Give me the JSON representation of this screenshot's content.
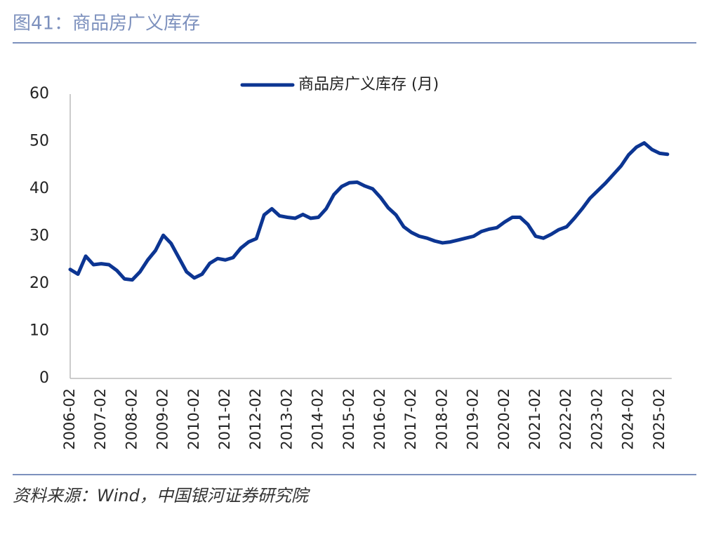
{
  "chart_data": {
    "type": "line",
    "title": "图41：商品房广义库存",
    "source": "资料来源：Wind，中国银河证券研究院",
    "categories": [
      "2006-02",
      null,
      null,
      null,
      "2007-02",
      null,
      null,
      null,
      "2008-02",
      null,
      null,
      null,
      "2009-02",
      null,
      null,
      null,
      "2010-02",
      null,
      null,
      null,
      "2011-02",
      null,
      null,
      null,
      "2012-02",
      null,
      null,
      null,
      "2013-02",
      null,
      null,
      null,
      "2014-02",
      null,
      null,
      null,
      "2015-02",
      null,
      null,
      null,
      "2016-02",
      null,
      null,
      null,
      "2017-02",
      null,
      null,
      null,
      "2018-02",
      null,
      null,
      null,
      "2019-02",
      null,
      null,
      null,
      "2020-02",
      null,
      null,
      null,
      "2021-02",
      null,
      null,
      null,
      "2022-02",
      null,
      null,
      null,
      "2023-02",
      null,
      null,
      null,
      "2024-02",
      null,
      null,
      null,
      "2025-02",
      null
    ],
    "series": [
      {
        "name": "商品房广义库存 (月)",
        "color": "#0c3592",
        "values": [
          23,
          22,
          25.8,
          24,
          24.2,
          24,
          22.8,
          21,
          20.8,
          22.5,
          25,
          27,
          30.2,
          28.5,
          25.5,
          22.5,
          21.2,
          22,
          24.3,
          25.3,
          25,
          25.5,
          27.5,
          28.8,
          29.5,
          34.5,
          35.8,
          34.3,
          34,
          33.8,
          34.6,
          33.8,
          34,
          35.8,
          38.8,
          40.5,
          41.3,
          41.4,
          40.6,
          40,
          38.2,
          36,
          34.5,
          32,
          30.8,
          30,
          29.6,
          29,
          28.6,
          28.8,
          29.2,
          29.6,
          30,
          31,
          31.5,
          31.8,
          33,
          34,
          34,
          32.5,
          30,
          29.6,
          30.4,
          31.4,
          32,
          33.8,
          35.8,
          38,
          39.6,
          41.2,
          43,
          44.8,
          47.2,
          48.8,
          49.7,
          48.3,
          47.5,
          47.3
        ]
      }
    ],
    "ylim": [
      0,
      60
    ],
    "yticks": [
      0,
      10,
      20,
      30,
      40,
      50,
      60
    ],
    "grid": false,
    "legend": "top"
  }
}
